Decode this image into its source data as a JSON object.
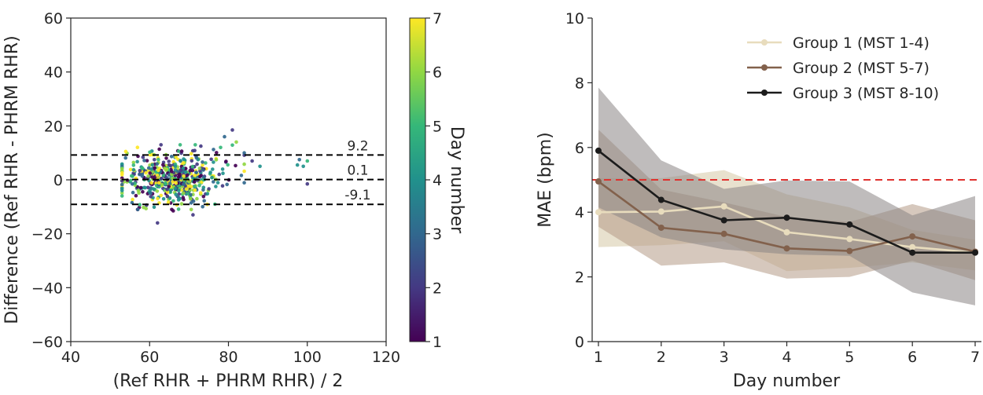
{
  "chart_data": [
    {
      "type": "scatter",
      "title": "",
      "xlabel": "(Ref RHR + PHRM RHR) / 2",
      "ylabel": "Difference (Ref RHR - PHRM RHR)",
      "xlim": [
        40,
        120
      ],
      "ylim": [
        -60,
        60
      ],
      "xticks": [
        "40",
        "60",
        "80",
        "100",
        "120"
      ],
      "yticks": [
        "−60",
        "−40",
        "−20",
        "0",
        "20",
        "40",
        "60"
      ],
      "colorbar": {
        "label": "Day number",
        "range": [
          1,
          7
        ],
        "ticks": [
          "1",
          "2",
          "3",
          "4",
          "5",
          "6",
          "7"
        ],
        "colormap": [
          "#440154",
          "#443983",
          "#31688e",
          "#21918c",
          "#35b779",
          "#90d743",
          "#fde725"
        ]
      },
      "reference_lines": [
        {
          "label": "9.2",
          "y": 9.2,
          "style": "dashed",
          "color": "#000000"
        },
        {
          "label": "0.1",
          "y": 0.1,
          "style": "dashed",
          "color": "#000000"
        },
        {
          "label": "-9.1",
          "y": -9.1,
          "style": "dashed",
          "color": "#000000"
        }
      ],
      "cloud": {
        "x_range": [
          53,
          84
        ],
        "x_center": 66,
        "y_sd": 4.6,
        "count": 560,
        "seed": 7
      },
      "points": [
        {
          "x": 62,
          "y": -16,
          "day": 2
        },
        {
          "x": 71,
          "y": -13,
          "day": 2
        },
        {
          "x": 81,
          "y": 18.5,
          "day": 2
        },
        {
          "x": 79,
          "y": 16,
          "day": 3
        },
        {
          "x": 82,
          "y": 14,
          "day": 6
        },
        {
          "x": 78,
          "y": 12,
          "day": 5
        },
        {
          "x": 73,
          "y": 12.5,
          "day": 2
        },
        {
          "x": 84,
          "y": 10,
          "day": 3
        },
        {
          "x": 86,
          "y": 7,
          "day": 2
        },
        {
          "x": 88,
          "y": 5,
          "day": 4
        },
        {
          "x": 98,
          "y": 7.5,
          "day": 3
        },
        {
          "x": 99,
          "y": 5,
          "day": 4
        },
        {
          "x": 100,
          "y": 7,
          "day": 5
        },
        {
          "x": 97.5,
          "y": 5.5,
          "day": 4
        },
        {
          "x": 100,
          "y": -1.5,
          "day": 2
        },
        {
          "x": 57,
          "y": -11,
          "day": 3
        },
        {
          "x": 66,
          "y": -11.5,
          "day": 1
        }
      ]
    },
    {
      "type": "line",
      "title": "",
      "xlabel": "Day number",
      "ylabel": "MAE (bpm)",
      "x": [
        1,
        2,
        3,
        4,
        5,
        6,
        7
      ],
      "xticks": [
        "1",
        "2",
        "3",
        "4",
        "5",
        "6",
        "7"
      ],
      "yticks": [
        "0",
        "2",
        "4",
        "6",
        "8",
        "10"
      ],
      "xlim": [
        0.9,
        7.1
      ],
      "ylim": [
        0,
        10
      ],
      "legend_position": "top-right",
      "reference_line": {
        "y": 5,
        "color": "#e0322f",
        "style": "dashed"
      },
      "series": [
        {
          "name": "Group 1 (MST 1-4)",
          "color": "#e8dcbd",
          "band_color": "#d6c8a6",
          "values": [
            4.0,
            4.02,
            4.18,
            3.38,
            3.17,
            2.92,
            2.75
          ],
          "lower": [
            2.92,
            2.98,
            3.1,
            2.18,
            2.28,
            2.45,
            2.2
          ],
          "upper": [
            5.05,
            5.05,
            5.3,
            4.55,
            4.15,
            3.45,
            3.15
          ]
        },
        {
          "name": "Group 2 (MST 5-7)",
          "color": "#82614c",
          "band_color": "#b59a86",
          "values": [
            4.95,
            3.52,
            3.33,
            2.88,
            2.8,
            3.25,
            2.78
          ],
          "lower": [
            3.55,
            2.35,
            2.45,
            1.95,
            2.0,
            2.5,
            1.9
          ],
          "upper": [
            6.55,
            4.7,
            4.3,
            3.85,
            3.7,
            4.25,
            3.75
          ]
        },
        {
          "name": "Group 3 (MST 8-10)",
          "color": "#1c1c1c",
          "band_color": "#8a8585",
          "values": [
            5.9,
            4.38,
            3.75,
            3.83,
            3.62,
            2.75,
            2.75
          ],
          "lower": [
            4.15,
            3.22,
            2.85,
            2.7,
            2.65,
            1.52,
            1.12
          ],
          "upper": [
            7.85,
            5.6,
            4.72,
            4.98,
            4.95,
            3.9,
            4.5
          ]
        }
      ]
    }
  ]
}
